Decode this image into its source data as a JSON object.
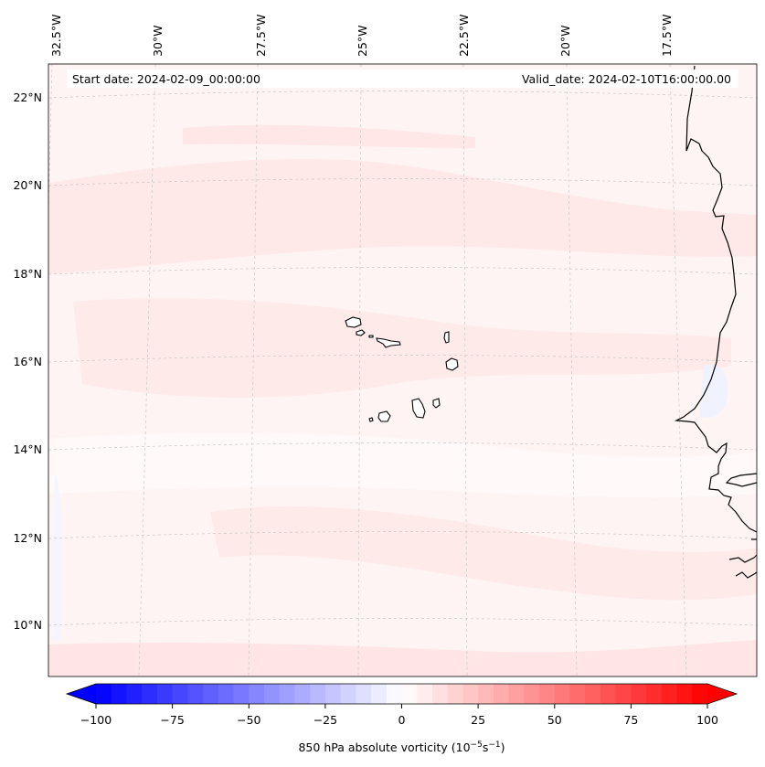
{
  "map": {
    "start_date": "Start date: 2024-02-09_00:00:00",
    "valid_date": "Valid_date: 2024-02-10T16:00:00.00",
    "lon_labels": [
      "32.5°W",
      "30°W",
      "27.5°W",
      "25°W",
      "22.5°W",
      "20°W",
      "17.5°W"
    ],
    "lat_labels": [
      "22°N",
      "20°N",
      "18°N",
      "16°N",
      "14°N",
      "12°N",
      "10°N"
    ]
  },
  "colorbar": {
    "vmin": -100,
    "vmax": 100,
    "step": 5,
    "ticks": [
      "−100",
      "−75",
      "−50",
      "−25",
      "0",
      "25",
      "50",
      "75",
      "100"
    ],
    "label": "850 hPa absolute vorticity",
    "label_units": "(10",
    "label_exp1": "−5",
    "label_mid": "s",
    "label_exp2": "−1",
    "label_close": ")"
  },
  "colors": {
    "negative": "#0000ff",
    "positive": "#ff0000",
    "neutral": "#ffffff",
    "field_light": "#fff4f4",
    "field_medium": "#ffe6e6",
    "coast": "#000000",
    "grid": "#c8c8c8"
  }
}
